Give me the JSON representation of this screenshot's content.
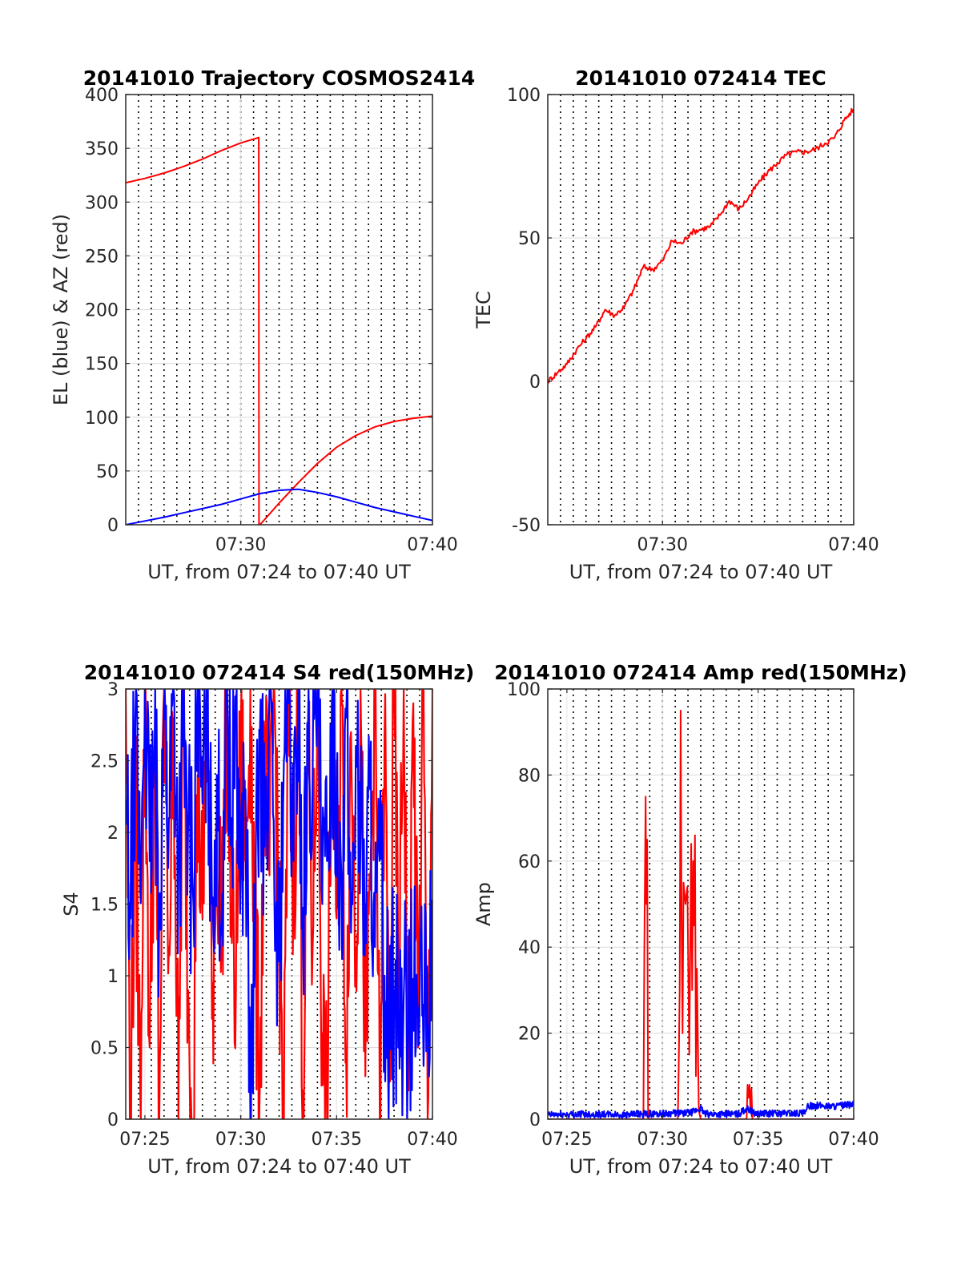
{
  "chart_data": [
    {
      "type": "line",
      "title": "20141010 Trajectory COSMOS2414",
      "xlabel": "UT, from 07:24 to 07:40 UT",
      "ylabel": "EL (blue) & AZ (red)",
      "xlim": [
        0,
        16
      ],
      "ylim": [
        0,
        400
      ],
      "xticks": [
        {
          "x": 6,
          "label": "07:30"
        },
        {
          "x": 16,
          "label": "07:40"
        }
      ],
      "yticks": [
        {
          "y": 0,
          "label": "0"
        },
        {
          "y": 50,
          "label": "50"
        },
        {
          "y": 100,
          "label": "100"
        },
        {
          "y": 150,
          "label": "150"
        },
        {
          "y": 200,
          "label": "200"
        },
        {
          "y": 250,
          "label": "250"
        },
        {
          "y": 300,
          "label": "300"
        },
        {
          "y": 350,
          "label": "350"
        },
        {
          "y": 400,
          "label": "400"
        }
      ],
      "grid": "horizontal gridlines with dotted vertical lines every 40 s",
      "series": [
        {
          "color": "#ff0000",
          "x": [
            0,
            1,
            2,
            3,
            4,
            5,
            6,
            6.94,
            6.95,
            7,
            8,
            9,
            10,
            11,
            12,
            13,
            14,
            15,
            16
          ],
          "values": [
            318,
            322,
            327,
            333,
            340,
            348,
            355,
            360,
            0,
            0,
            20,
            39,
            57,
            72,
            83,
            91,
            96,
            99,
            101
          ]
        },
        {
          "color": "#0000ff",
          "x": [
            0,
            1,
            2,
            3,
            4,
            5,
            6,
            7,
            8,
            9,
            10,
            11,
            12,
            13,
            14,
            15,
            16
          ],
          "values": [
            0,
            3.5,
            7,
            11,
            15,
            19,
            24,
            29,
            32,
            33,
            30,
            26,
            21,
            16,
            12,
            8,
            4
          ]
        }
      ]
    },
    {
      "type": "line",
      "title": "20141010 072414 TEC",
      "xlabel": "UT, from 07:24 to 07:40 UT",
      "ylabel": "TEC",
      "xlim": [
        0,
        16
      ],
      "ylim": [
        -50,
        100
      ],
      "xticks": [
        {
          "x": 6,
          "label": "07:30"
        },
        {
          "x": 16,
          "label": "07:40"
        }
      ],
      "yticks": [
        {
          "y": -50,
          "label": "-50"
        },
        {
          "y": 0,
          "label": "0"
        },
        {
          "y": 50,
          "label": "50"
        },
        {
          "y": 100,
          "label": "100"
        }
      ],
      "grid": "horizontal gridlines with dotted vertical lines every 40 s",
      "series": [
        {
          "color": "#ff0000",
          "x": [
            0,
            0.5,
            1,
            1.5,
            2,
            2.5,
            3,
            3.5,
            4,
            4.5,
            5,
            5.5,
            6,
            6.5,
            7,
            7.5,
            8,
            8.5,
            9,
            9.5,
            10,
            10.5,
            11,
            11.5,
            12,
            12.5,
            13,
            13.5,
            14,
            14.5,
            15,
            15.5,
            16
          ],
          "values": [
            0,
            3,
            6,
            11,
            15,
            19,
            25,
            23,
            26,
            32,
            40,
            39,
            42,
            49,
            48,
            52,
            53,
            54,
            58,
            63,
            60,
            64,
            69,
            73,
            76,
            79,
            80,
            80,
            81,
            83,
            85,
            91,
            95
          ]
        }
      ]
    },
    {
      "type": "line",
      "title": "20141010 072414 S4 red(150MHz)",
      "xlabel": "UT, from 07:24 to 07:40 UT",
      "ylabel": "S4",
      "xlim": [
        0,
        16
      ],
      "ylim": [
        0,
        3
      ],
      "xticks": [
        {
          "x": 1,
          "label": "07:25"
        },
        {
          "x": 6,
          "label": "07:30"
        },
        {
          "x": 11,
          "label": "07:35"
        },
        {
          "x": 16,
          "label": "07:40"
        }
      ],
      "yticks": [
        {
          "y": 0,
          "label": "0"
        },
        {
          "y": 0.5,
          "label": "0.5"
        },
        {
          "y": 1,
          "label": "1"
        },
        {
          "y": 1.5,
          "label": "1.5"
        },
        {
          "y": 2,
          "label": "2"
        },
        {
          "y": 2.5,
          "label": "2.5"
        },
        {
          "y": 3,
          "label": "3"
        }
      ],
      "grid": "horizontal gridlines with dotted vertical lines every 40 s",
      "series": [
        {
          "color": "#ff0000",
          "x": [
            0,
            0.25,
            0.5,
            0.75,
            1,
            1.25,
            1.5,
            1.75,
            2,
            2.25,
            2.5,
            2.75,
            3,
            3.25,
            3.5,
            3.75,
            4,
            4.25,
            4.5,
            4.75,
            5,
            5.25,
            5.5,
            5.75,
            6,
            6.25,
            6.5,
            6.75,
            7,
            7.25,
            7.5,
            7.75,
            8,
            8.25,
            8.5,
            8.75,
            9,
            9.25,
            9.5,
            9.75,
            10,
            10.25,
            10.5,
            10.75,
            11,
            11.25,
            11.5,
            11.75,
            12,
            12.25,
            12.5,
            12.75,
            13,
            13.25,
            13.5,
            13.75,
            14,
            14.25,
            14.5,
            14.75,
            15,
            15.25,
            15.5,
            15.75,
            16
          ],
          "values": [
            3,
            0,
            2.2,
            0.2,
            3,
            0.5,
            2.6,
            0,
            3,
            1.2,
            2.8,
            0,
            3,
            0.9,
            0,
            2.4,
            1.4,
            3,
            0.7,
            2.1,
            1.3,
            3,
            1.5,
            0.9,
            2.7,
            1.8,
            3,
            1.1,
            0.3,
            2.6,
            1.7,
            3,
            1.4,
            0,
            2.9,
            1.6,
            3,
            0.2,
            2.5,
            1.2,
            3,
            0.6,
            0,
            2.8,
            1.4,
            3,
            0.4,
            2.7,
            1.2,
            3,
            0.3,
            1.6,
            3,
            0,
            2.7,
            0.4,
            3,
            0.8,
            3,
            0.2,
            2.9,
            0.5,
            3,
            0,
            3
          ]
        },
        {
          "color": "#0000ff",
          "x": [
            0,
            0.25,
            0.5,
            0.75,
            1,
            1.25,
            1.5,
            1.75,
            2,
            2.25,
            2.5,
            2.75,
            3,
            3.25,
            3.5,
            3.75,
            4,
            4.25,
            4.5,
            4.75,
            5,
            5.25,
            5.5,
            5.75,
            6,
            6.25,
            6.5,
            6.75,
            7,
            7.25,
            7.5,
            7.75,
            8,
            8.25,
            8.5,
            8.75,
            9,
            9.25,
            9.5,
            9.75,
            10,
            10.25,
            10.5,
            10.75,
            11,
            11.25,
            11.5,
            11.75,
            12,
            12.25,
            12.5,
            12.75,
            13,
            13.25,
            13.5,
            13.75,
            14,
            14.25,
            14.5,
            14.75,
            15,
            15.25,
            15.5,
            15.75,
            16
          ],
          "values": [
            2.1,
            1.4,
            2.8,
            1.6,
            3,
            1.8,
            2.5,
            1.5,
            2.9,
            2.1,
            3,
            1.7,
            2.6,
            2,
            1.6,
            3,
            2.2,
            2.8,
            1.5,
            2.4,
            1.4,
            3,
            2.1,
            2.9,
            1.7,
            2.3,
            0,
            1.3,
            2.7,
            1.9,
            3,
            1.6,
            1.1,
            2.5,
            2.9,
            1.8,
            3,
            1.2,
            2.7,
            2.4,
            3,
            1.5,
            1.8,
            2.9,
            2.2,
            1.7,
            2.8,
            1.3,
            2.6,
            2,
            1.5,
            2.3,
            1.2,
            1.8,
            1,
            0.7,
            0.9,
            0.75,
            0.85,
            0.7,
            0.9,
            0.75,
            0.8,
            0.7,
            1.4
          ]
        }
      ]
    },
    {
      "type": "line",
      "title": "20141010 072414 Amp red(150MHz)",
      "xlabel": "UT, from 07:24 to 07:40 UT",
      "ylabel": "Amp",
      "xlim": [
        0,
        16
      ],
      "ylim": [
        0,
        100
      ],
      "xticks": [
        {
          "x": 1,
          "label": "07:25"
        },
        {
          "x": 6,
          "label": "07:30"
        },
        {
          "x": 11,
          "label": "07:35"
        },
        {
          "x": 16,
          "label": "07:40"
        }
      ],
      "yticks": [
        {
          "y": 0,
          "label": "0"
        },
        {
          "y": 20,
          "label": "20"
        },
        {
          "y": 40,
          "label": "40"
        },
        {
          "y": 60,
          "label": "60"
        },
        {
          "y": 80,
          "label": "80"
        },
        {
          "y": 100,
          "label": "100"
        }
      ],
      "grid": "horizontal gridlines with dotted vertical lines every 40 s",
      "series": [
        {
          "color": "#ff0000",
          "x": [
            0,
            5.0,
            5.05,
            5.1,
            5.12,
            5.15,
            5.2,
            5.25,
            5.3,
            6.8,
            6.85,
            6.9,
            6.95,
            7.0,
            7.05,
            7.1,
            7.2,
            7.3,
            7.4,
            7.45,
            7.5,
            7.55,
            7.6,
            7.65,
            7.7,
            7.75,
            7.8,
            7.9,
            8.0,
            8.1,
            10.4,
            10.45,
            10.5,
            10.55,
            10.6,
            10.65,
            10.7,
            16
          ],
          "values": [
            0,
            0,
            40,
            66,
            75,
            50,
            65,
            2,
            0,
            0,
            12,
            30,
            95,
            45,
            20,
            55,
            50,
            54,
            15,
            40,
            64,
            30,
            60,
            45,
            66,
            10,
            35,
            2,
            0,
            0,
            0,
            8,
            5,
            8,
            2,
            7,
            0,
            0
          ]
        },
        {
          "color": "#0000ff",
          "x": [
            0,
            2,
            4,
            6,
            7.5,
            8.0,
            8.2,
            10,
            10.4,
            10.8,
            11,
            13.5,
            13.6,
            14,
            15,
            16
          ],
          "values": [
            1,
            1.2,
            1,
            1.3,
            1.5,
            2.5,
            1.2,
            1.2,
            2.5,
            1.5,
            1.3,
            1.4,
            3,
            3.2,
            3,
            3.4
          ]
        }
      ]
    }
  ]
}
